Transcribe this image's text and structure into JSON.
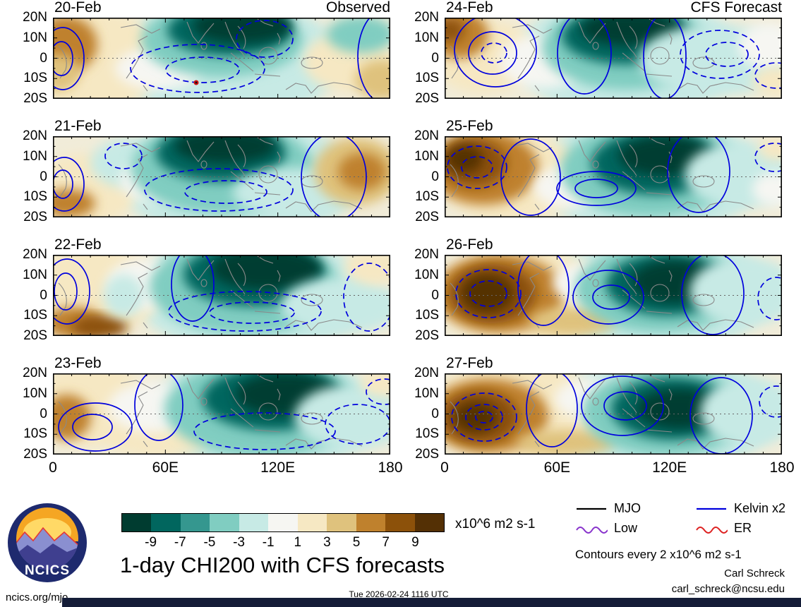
{
  "columns": [
    {
      "label": "Observed"
    },
    {
      "label": "CFS Forecast"
    }
  ],
  "axes": {
    "lat_labels": [
      "20N",
      "10N",
      "0",
      "10S",
      "20S"
    ],
    "lon_labels": [
      "0",
      "60E",
      "120E",
      "180"
    ]
  },
  "chart_data": {
    "type": "heatmap",
    "title": "1-day CHI200 with CFS forecasts",
    "units": "x10^6 m2 s-1",
    "contour_note": "Contours every 2 x10^6 m2 s-1",
    "contour_color": "#0000dd",
    "coast_color": "#8a8a8a",
    "panel_layout": "4 rows x 2 columns; left column Observed (20-23 Feb), right column CFS Forecast (24-27 Feb)",
    "lat_range": [
      "20N",
      "20S"
    ],
    "lon_range": [
      "0",
      "180"
    ],
    "colorbar": {
      "tick_labels": [
        "-9",
        "-7",
        "-5",
        "-3",
        "-1",
        "1",
        "3",
        "5",
        "7",
        "9"
      ],
      "colors": [
        "#003c30",
        "#01665e",
        "#35978f",
        "#80cdc1",
        "#c7eae5",
        "#f6f6f2",
        "#f6e8c3",
        "#dfc27d",
        "#bf812d",
        "#8c510a",
        "#543005"
      ],
      "base": "#f1ecd9"
    },
    "legend": [
      {
        "label": "MJO",
        "color": "#000000",
        "style": "solid"
      },
      {
        "label": "Kelvin x2",
        "color": "#0000dd",
        "style": "solid"
      },
      {
        "label": "Low",
        "color": "#8833cc",
        "style": "wavy"
      },
      {
        "label": "ER",
        "color": "#dd2222",
        "style": "wavy"
      }
    ],
    "panels": [
      {
        "date": "20-Feb",
        "col": 0,
        "row": 0,
        "features": "negative (teal) anomaly centered near 90-120E north of equator; positive (brown) near 0-20E and far east 160E",
        "blobs": [
          [
            250,
            60,
            160,
            85,
            4
          ],
          [
            60,
            60,
            95,
            70,
            6
          ],
          [
            18,
            38,
            45,
            40,
            8
          ],
          [
            8,
            78,
            30,
            26,
            7
          ],
          [
            150,
            72,
            62,
            30,
            5
          ],
          [
            240,
            32,
            115,
            52,
            3
          ],
          [
            250,
            18,
            88,
            36,
            1
          ],
          [
            268,
            12,
            70,
            24,
            0
          ],
          [
            420,
            62,
            65,
            42,
            6
          ],
          [
            466,
            88,
            38,
            28,
            7
          ],
          [
            436,
            24,
            48,
            26,
            3
          ]
        ],
        "contours": [
          [
            14,
            58,
            30,
            44,
            0
          ],
          [
            12,
            58,
            16,
            24,
            0
          ],
          [
            205,
            72,
            95,
            34,
            1
          ],
          [
            212,
            74,
            52,
            18,
            1
          ],
          [
            300,
            30,
            40,
            26,
            1
          ],
          [
            470,
            55,
            38,
            66,
            0
          ]
        ],
        "marks": [
          [
            203,
            92
          ]
        ]
      },
      {
        "date": "21-Feb",
        "col": 0,
        "row": 1,
        "features": "teal center near 85-100E; brown maximum near 150E equator; tan west Africa",
        "blobs": [
          [
            260,
            60,
            170,
            85,
            4
          ],
          [
            45,
            75,
            75,
            50,
            6
          ],
          [
            22,
            95,
            38,
            20,
            8
          ],
          [
            108,
            38,
            55,
            35,
            4
          ],
          [
            150,
            62,
            55,
            32,
            5
          ],
          [
            240,
            45,
            130,
            65,
            3
          ],
          [
            238,
            24,
            92,
            40,
            1
          ],
          [
            244,
            14,
            72,
            24,
            0
          ],
          [
            345,
            80,
            90,
            35,
            4
          ],
          [
            430,
            50,
            60,
            48,
            7
          ],
          [
            438,
            50,
            34,
            26,
            8
          ]
        ],
        "contours": [
          [
            16,
            68,
            28,
            38,
            0
          ],
          [
            14,
            68,
            14,
            20,
            0
          ],
          [
            235,
            76,
            105,
            30,
            1
          ],
          [
            245,
            79,
            58,
            16,
            1
          ],
          [
            100,
            28,
            26,
            18,
            1
          ],
          [
            398,
            58,
            46,
            62,
            0
          ]
        ]
      },
      {
        "date": "22-Feb",
        "col": 0,
        "row": 2,
        "features": "dark teal near 105-120E north; browns 10-30E south; light teal east Pacific",
        "blobs": [
          [
            280,
            55,
            165,
            85,
            4
          ],
          [
            60,
            50,
            95,
            62,
            6
          ],
          [
            30,
            96,
            42,
            22,
            8
          ],
          [
            66,
            102,
            40,
            16,
            9
          ],
          [
            128,
            42,
            52,
            36,
            5
          ],
          [
            100,
            58,
            28,
            30,
            4
          ],
          [
            272,
            45,
            135,
            68,
            3
          ],
          [
            285,
            28,
            100,
            45,
            1
          ],
          [
            302,
            20,
            78,
            30,
            0
          ],
          [
            408,
            72,
            85,
            40,
            4
          ],
          [
            455,
            18,
            42,
            24,
            6
          ]
        ],
        "contours": [
          [
            20,
            52,
            32,
            46,
            0
          ],
          [
            18,
            52,
            16,
            26,
            0
          ],
          [
            272,
            80,
            108,
            28,
            1
          ],
          [
            282,
            82,
            60,
            15,
            1
          ],
          [
            198,
            42,
            30,
            52,
            0
          ],
          [
            448,
            60,
            36,
            48,
            1
          ]
        ]
      },
      {
        "date": "23-Feb",
        "col": 0,
        "row": 3,
        "features": "dark teal near 110-130E; browns near 0-25E; light teal far east",
        "blobs": [
          [
            300,
            55,
            160,
            85,
            4
          ],
          [
            55,
            45,
            85,
            58,
            6
          ],
          [
            20,
            62,
            34,
            32,
            8
          ],
          [
            150,
            92,
            75,
            26,
            6
          ],
          [
            140,
            48,
            62,
            35,
            5
          ],
          [
            298,
            50,
            140,
            68,
            3
          ],
          [
            312,
            36,
            100,
            45,
            1
          ],
          [
            330,
            30,
            72,
            30,
            0
          ],
          [
            424,
            62,
            82,
            46,
            4
          ],
          [
            468,
            14,
            32,
            18,
            6
          ]
        ],
        "contours": [
          [
            60,
            76,
            52,
            34,
            0
          ],
          [
            56,
            76,
            28,
            18,
            0
          ],
          [
            150,
            45,
            34,
            50,
            0
          ],
          [
            300,
            82,
            100,
            26,
            1
          ],
          [
            432,
            72,
            46,
            28,
            1
          ],
          [
            470,
            26,
            26,
            18,
            1
          ]
        ]
      },
      {
        "date": "24-Feb",
        "col": 1,
        "row": 0,
        "features": "forecast: teal near 95-105E; brown near 5-15E north; broad light teal east",
        "blobs": [
          [
            260,
            55,
            160,
            85,
            4
          ],
          [
            55,
            55,
            75,
            52,
            6
          ],
          [
            20,
            24,
            42,
            34,
            8
          ],
          [
            8,
            18,
            20,
            16,
            9
          ],
          [
            140,
            62,
            62,
            38,
            5
          ],
          [
            258,
            42,
            120,
            60,
            3
          ],
          [
            258,
            26,
            92,
            40,
            1
          ],
          [
            264,
            16,
            72,
            24,
            0
          ],
          [
            385,
            60,
            110,
            50,
            4
          ],
          [
            460,
            40,
            44,
            32,
            5
          ],
          [
            470,
            90,
            34,
            20,
            6
          ]
        ],
        "contours": [
          [
            72,
            46,
            58,
            52,
            0
          ],
          [
            68,
            50,
            34,
            30,
            0
          ],
          [
            70,
            50,
            18,
            14,
            1
          ],
          [
            198,
            50,
            38,
            58,
            0
          ],
          [
            312,
            55,
            30,
            60,
            0
          ],
          [
            390,
            52,
            56,
            34,
            1
          ],
          [
            400,
            52,
            30,
            17,
            1
          ],
          [
            470,
            82,
            30,
            18,
            1
          ]
        ]
      },
      {
        "date": "25-Feb",
        "col": 1,
        "row": 1,
        "features": "strong browns 5-30E; dark teal 105-120E; light teal east Pacific",
        "blobs": [
          [
            290,
            55,
            160,
            85,
            4
          ],
          [
            95,
            58,
            105,
            62,
            6
          ],
          [
            55,
            45,
            78,
            52,
            8
          ],
          [
            42,
            38,
            46,
            34,
            9
          ],
          [
            28,
            32,
            26,
            20,
            10
          ],
          [
            178,
            72,
            52,
            30,
            5
          ],
          [
            292,
            48,
            128,
            66,
            3
          ],
          [
            300,
            38,
            92,
            45,
            1
          ],
          [
            312,
            28,
            66,
            28,
            0
          ],
          [
            420,
            55,
            80,
            46,
            4
          ],
          [
            468,
            75,
            32,
            24,
            5
          ],
          [
            470,
            18,
            26,
            16,
            6
          ]
        ],
        "contours": [
          [
            46,
            44,
            42,
            30,
            1
          ],
          [
            46,
            44,
            22,
            15,
            1
          ],
          [
            122,
            58,
            42,
            54,
            0
          ],
          [
            215,
            74,
            56,
            24,
            0
          ],
          [
            215,
            74,
            30,
            13,
            0
          ],
          [
            360,
            50,
            44,
            58,
            0
          ],
          [
            468,
            30,
            28,
            20,
            1
          ]
        ]
      },
      {
        "date": "26-Feb",
        "col": 1,
        "row": 2,
        "features": "very dark brown core near 20-25E; dark teal near 110-125E; tan mid-south",
        "blobs": [
          [
            300,
            55,
            160,
            85,
            4
          ],
          [
            110,
            58,
            125,
            68,
            6
          ],
          [
            78,
            55,
            92,
            55,
            8
          ],
          [
            68,
            55,
            62,
            42,
            9
          ],
          [
            60,
            55,
            38,
            28,
            10
          ],
          [
            182,
            94,
            62,
            20,
            7
          ],
          [
            205,
            40,
            52,
            30,
            5
          ],
          [
            305,
            48,
            120,
            62,
            3
          ],
          [
            315,
            42,
            86,
            44,
            1
          ],
          [
            325,
            38,
            60,
            30,
            0
          ],
          [
            425,
            52,
            78,
            48,
            4
          ]
        ],
        "contours": [
          [
            62,
            55,
            46,
            34,
            1
          ],
          [
            62,
            55,
            26,
            18,
            1
          ],
          [
            140,
            46,
            36,
            54,
            0
          ],
          [
            232,
            60,
            50,
            38,
            0
          ],
          [
            236,
            60,
            26,
            17,
            0
          ],
          [
            380,
            55,
            44,
            58,
            0
          ],
          [
            470,
            62,
            26,
            30,
            1
          ]
        ]
      },
      {
        "date": "27-Feb",
        "col": 1,
        "row": 3,
        "features": "dark brown near 15-25E; dark teal near 115-130E; light teal far east",
        "blobs": [
          [
            310,
            58,
            160,
            82,
            4
          ],
          [
            100,
            55,
            125,
            72,
            6
          ],
          [
            62,
            60,
            85,
            52,
            8
          ],
          [
            50,
            62,
            55,
            38,
            9
          ],
          [
            44,
            62,
            32,
            22,
            10
          ],
          [
            172,
            98,
            70,
            18,
            7
          ],
          [
            212,
            36,
            56,
            30,
            5
          ],
          [
            315,
            55,
            120,
            62,
            3
          ],
          [
            322,
            50,
            86,
            44,
            1
          ],
          [
            332,
            50,
            60,
            28,
            0
          ],
          [
            432,
            55,
            70,
            48,
            4
          ]
        ],
        "contours": [
          [
            56,
            62,
            46,
            34,
            1
          ],
          [
            56,
            62,
            26,
            18,
            1
          ],
          [
            56,
            62,
            12,
            8,
            1
          ],
          [
            152,
            50,
            36,
            54,
            0
          ],
          [
            252,
            46,
            58,
            42,
            0
          ],
          [
            256,
            46,
            30,
            20,
            0
          ],
          [
            392,
            60,
            44,
            54,
            0
          ],
          [
            470,
            40,
            24,
            22,
            1
          ]
        ]
      }
    ]
  },
  "footer": {
    "site": "ncics.org/mjo",
    "timestamp": "Tue 2026-02-24 1116 UTC",
    "credit_name": "Carl Schreck",
    "credit_email": "carl_schreck@ncsu.edu",
    "logo_text": "NCICS",
    "bar_color": "#151d38"
  }
}
